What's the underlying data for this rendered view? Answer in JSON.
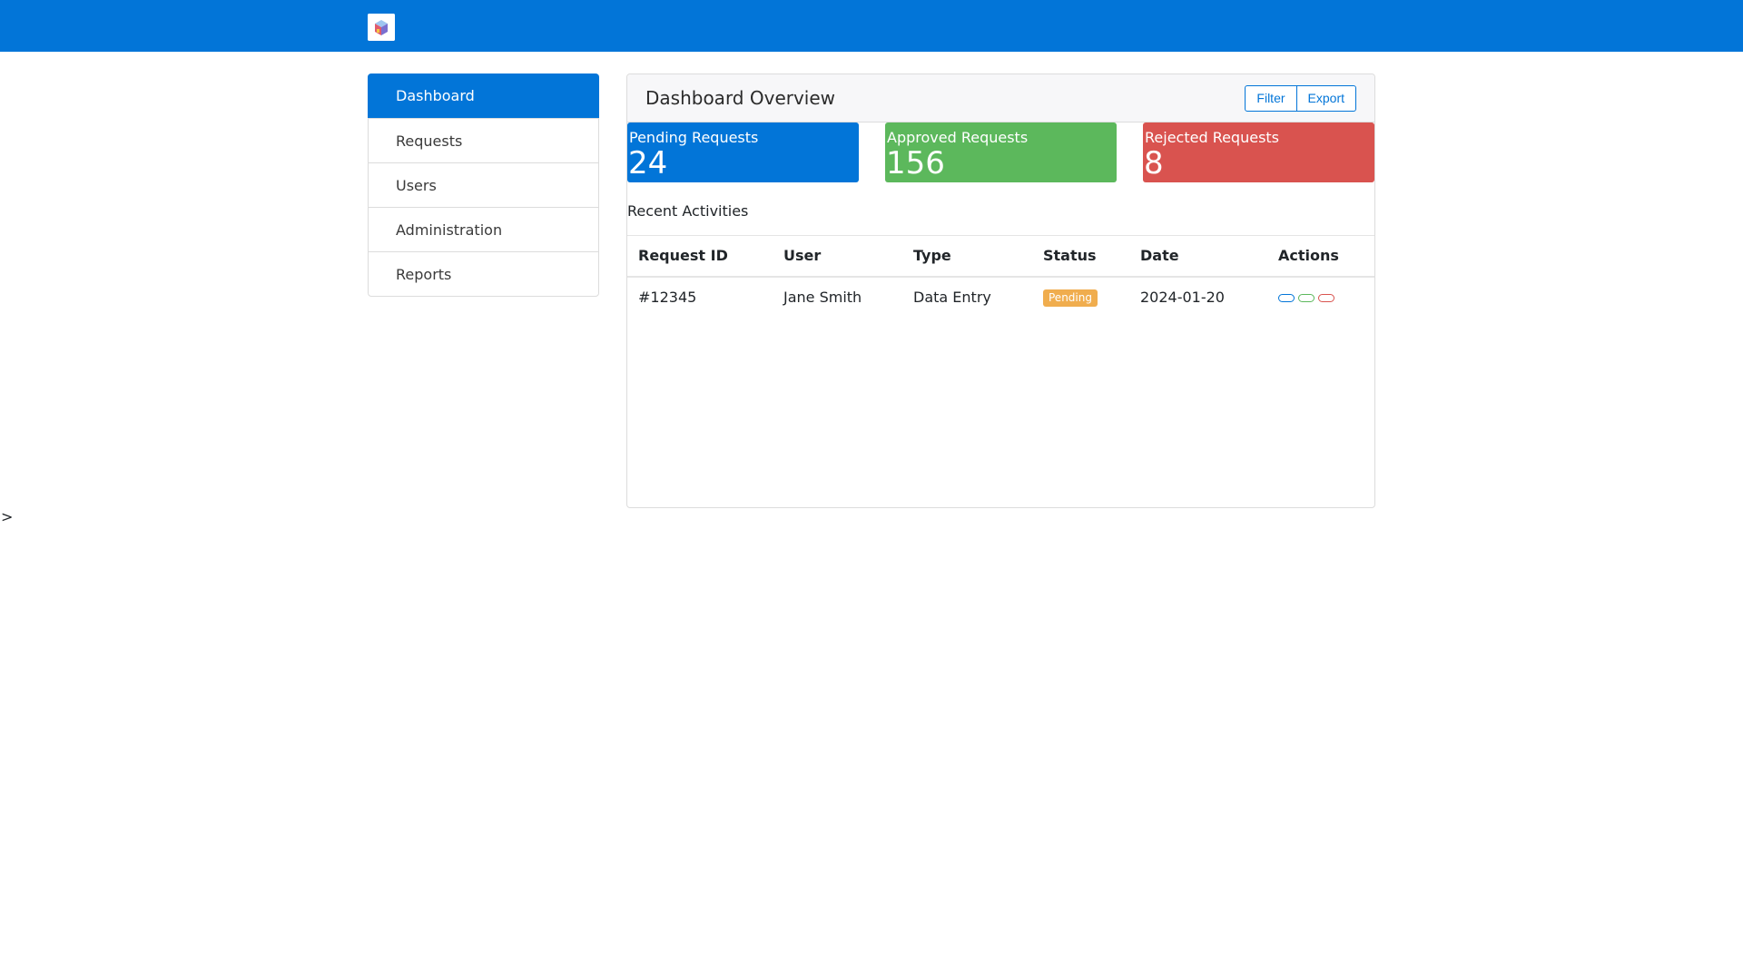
{
  "app": {
    "logo_icon": "app-logo-icon"
  },
  "colors": {
    "primary": "#0275d8",
    "success": "#5cb85c",
    "danger": "#d9534f",
    "warning": "#f0ad4e"
  },
  "sidebar": {
    "items": [
      {
        "label": "Dashboard",
        "active": true
      },
      {
        "label": "Requests",
        "active": false
      },
      {
        "label": "Users",
        "active": false
      },
      {
        "label": "Administration",
        "active": false
      },
      {
        "label": "Reports",
        "active": false
      }
    ]
  },
  "main": {
    "title": "Dashboard Overview",
    "filter_label": "Filter",
    "export_label": "Export",
    "stats": [
      {
        "label": "Pending Requests",
        "value": "24"
      },
      {
        "label": "Approved Requests",
        "value": "156"
      },
      {
        "label": "Rejected Requests",
        "value": "8"
      }
    ],
    "recent_title": "Recent Activities",
    "table": {
      "headers": [
        "Request ID",
        "User",
        "Type",
        "Status",
        "Date",
        "Actions"
      ],
      "rows": [
        {
          "id": "#12345",
          "user": "Jane Smith",
          "type": "Data Entry",
          "status": "Pending",
          "date": "2024-01-20"
        }
      ]
    }
  },
  "stray_text": ">"
}
